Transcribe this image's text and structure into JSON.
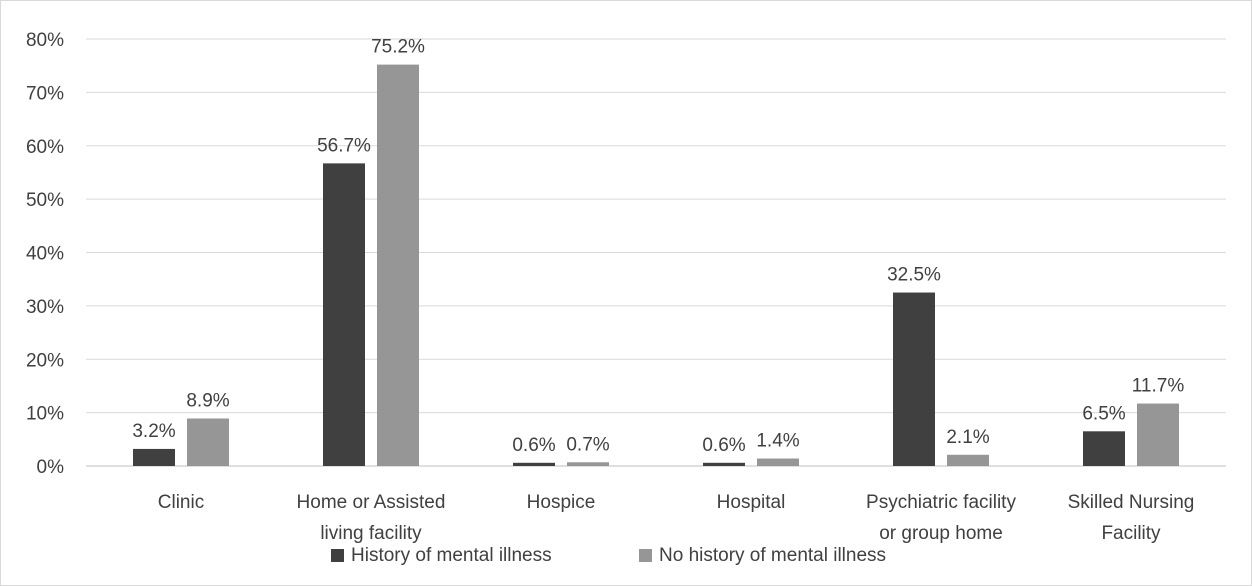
{
  "chart_data": {
    "type": "bar",
    "title": "",
    "xlabel": "",
    "ylabel": "",
    "ylim": [
      0,
      80
    ],
    "y_ticks": [
      "0%",
      "10%",
      "20%",
      "30%",
      "40%",
      "50%",
      "60%",
      "70%",
      "80%"
    ],
    "grid": "horizontal",
    "legend_position": "bottom",
    "categories": [
      [
        "Clinic"
      ],
      [
        "Home or Assisted",
        "living facility"
      ],
      [
        "Hospice"
      ],
      [
        "Hospital"
      ],
      [
        "Psychiatric facility",
        "or group home"
      ],
      [
        "Skilled Nursing",
        "Facility"
      ]
    ],
    "series": [
      {
        "name": "History of mental illness",
        "color": "#404040",
        "values": [
          3.2,
          56.7,
          0.6,
          0.6,
          32.5,
          6.5
        ],
        "labels": [
          "3.2%",
          "56.7%",
          "0.6%",
          "0.6%",
          "32.5%",
          "6.5%"
        ]
      },
      {
        "name": "No history of mental illness",
        "color": "#969696",
        "values": [
          8.9,
          75.2,
          0.7,
          1.4,
          2.1,
          11.7
        ],
        "labels": [
          "8.9%",
          "75.2%",
          "0.7%",
          "1.4%",
          "2.1%",
          "11.7%"
        ]
      }
    ]
  }
}
